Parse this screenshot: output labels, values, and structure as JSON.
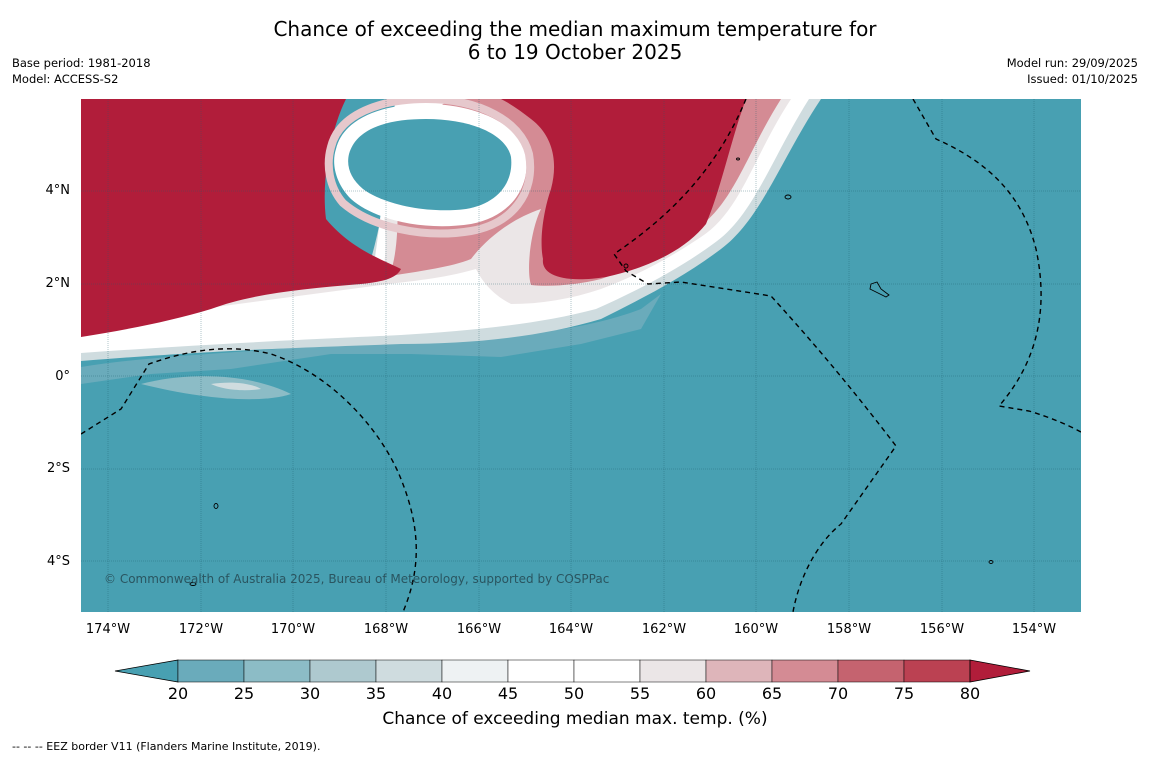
{
  "title": {
    "line1": "Chance of exceeding the median maximum temperature for",
    "line2": "6 to 19 October 2025"
  },
  "meta": {
    "base_period": "Base period: 1981-2018",
    "model": "Model: ACCESS-S2",
    "model_run": "Model run: 29/09/2025",
    "issued": "Issued: 01/10/2025"
  },
  "map": {
    "lat_labels": [
      "4°N",
      "2°N",
      "0°",
      "2°S",
      "4°S"
    ],
    "lon_labels": [
      "174°W",
      "172°W",
      "170°W",
      "168°W",
      "166°W",
      "164°W",
      "162°W",
      "160°W",
      "158°W",
      "156°W",
      "154°W"
    ],
    "copyright": "© Commonwealth of Australia 2025, Bureau of Meteorology, supported by COSPPac",
    "colors": {
      "low": "#48a0b2",
      "high": "#b11d3a"
    }
  },
  "colorbar": {
    "ticks": [
      "20",
      "25",
      "30",
      "35",
      "40",
      "45",
      "50",
      "55",
      "60",
      "65",
      "70",
      "75",
      "80"
    ],
    "colors": [
      "#48a0b2",
      "#6aabbb",
      "#8cbcc6",
      "#aec9cf",
      "#cfdcdf",
      "#eef2f3",
      "#ffffff",
      "#ffffff",
      "#ebe6e7",
      "#deb5ba",
      "#d48b94",
      "#c5636f",
      "#bb4152",
      "#b11d3a"
    ],
    "label": "Chance of exceeding median max. temp. (%)"
  },
  "footnote": "--  --  -- EEZ border V11 (Flanders Marine Institute, 2019)."
}
